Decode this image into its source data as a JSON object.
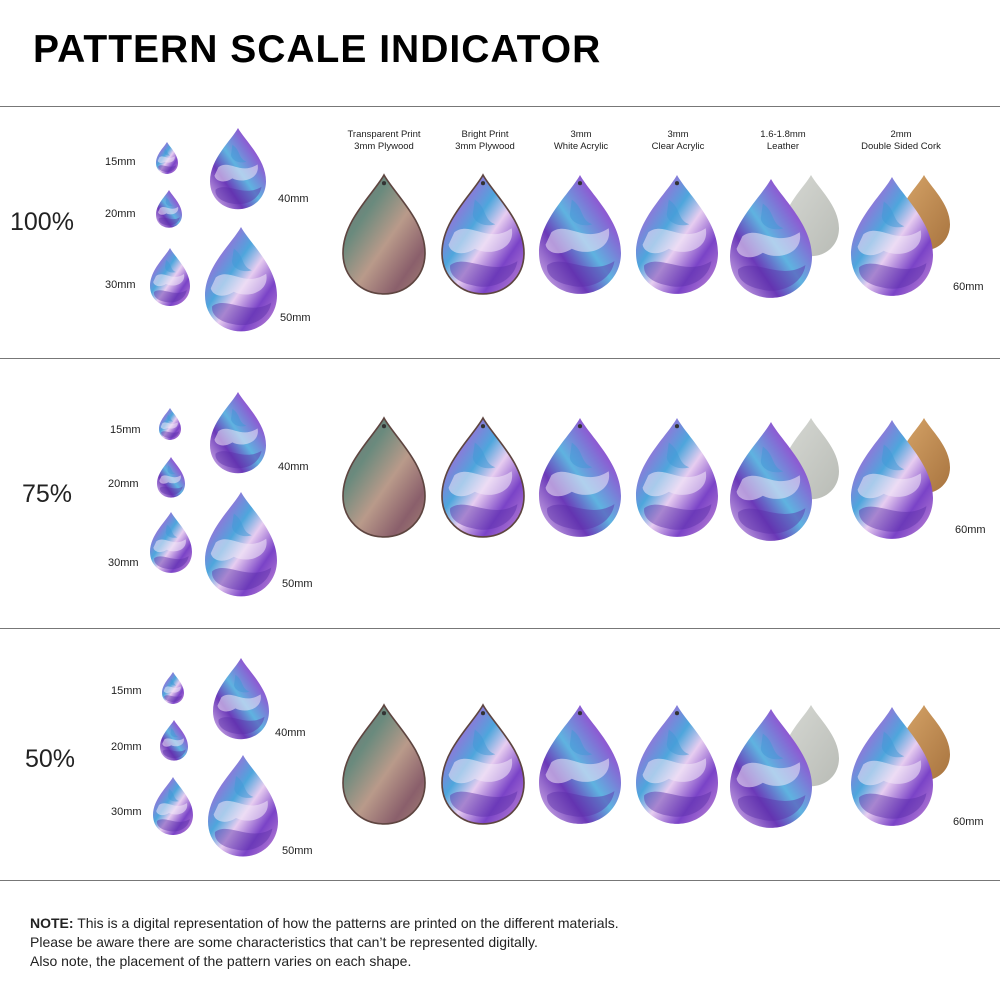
{
  "title": "PATTERN SCALE INDICATOR",
  "materials": [
    {
      "line1": "Transparent Print",
      "line2": "3mm Plywood"
    },
    {
      "line1": "Bright Print",
      "line2": "3mm Plywood"
    },
    {
      "line1": "3mm",
      "line2": "White Acrylic"
    },
    {
      "line1": "3mm",
      "line2": "Clear Acrylic"
    },
    {
      "line1": "1.6-1.8mm",
      "line2": "Leather"
    },
    {
      "line1": "2mm",
      "line2": "Double Sided Cork"
    }
  ],
  "sizes": [
    "15mm",
    "20mm",
    "30mm",
    "40mm",
    "50mm",
    "60mm"
  ],
  "scales": [
    {
      "label": "100%"
    },
    {
      "label": "75%"
    },
    {
      "label": "50%"
    }
  ],
  "note": {
    "bold": "NOTE:",
    "line1": " This is a digital representation of how the patterns are printed on the different materials.",
    "line2": "Please be aware there are some characteristics that can’t be represented digitally.",
    "line3": "Also note, the placement of the pattern varies on each shape."
  },
  "colors": {
    "violet": "#7b4fc9",
    "blue": "#4a9fd8",
    "lavender": "#c8b3ee",
    "pink": "#e9a8d8",
    "wood": "#8b6e5f",
    "leather": "#c9ccc6",
    "cork": "#c08a4e"
  }
}
